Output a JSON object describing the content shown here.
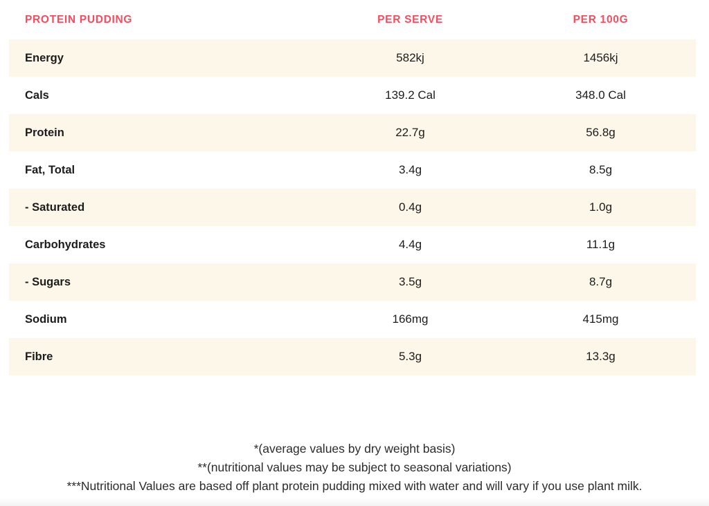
{
  "colors": {
    "accent_red": "#FA4A5C",
    "row_stripe": "#FCF7E8",
    "text_dark": "#1C1C1C",
    "footnote_gray": "#2B2B2B"
  },
  "table": {
    "header": {
      "title": "PROTEIN PUDDING",
      "col_per_serve": "PER SERVE",
      "col_per_100g": "PER 100G"
    },
    "rows": [
      {
        "label": "Energy",
        "per_serve": "582kj",
        "per_100g": "1456kj"
      },
      {
        "label": "Cals",
        "per_serve": "139.2 Cal",
        "per_100g": "348.0 Cal"
      },
      {
        "label": "Protein",
        "per_serve": "22.7g",
        "per_100g": "56.8g"
      },
      {
        "label": "Fat, Total",
        "per_serve": "3.4g",
        "per_100g": "8.5g"
      },
      {
        "label": "- Saturated",
        "per_serve": "0.4g",
        "per_100g": "1.0g"
      },
      {
        "label": "Carbohydrates",
        "per_serve": "4.4g",
        "per_100g": "11.1g"
      },
      {
        "label": "- Sugars",
        "per_serve": "3.5g",
        "per_100g": "8.7g"
      },
      {
        "label": "Sodium",
        "per_serve": "166mg",
        "per_100g": "415mg"
      },
      {
        "label": "Fibre",
        "per_serve": "5.3g",
        "per_100g": "13.3g"
      }
    ]
  },
  "footnotes": {
    "line1": "*(average values by dry weight basis)",
    "line2": "**(nutritional values may be subject to seasonal variations)",
    "line3": "***Nutritional Values are based off plant protein pudding mixed with water and will vary if you use plant milk."
  }
}
